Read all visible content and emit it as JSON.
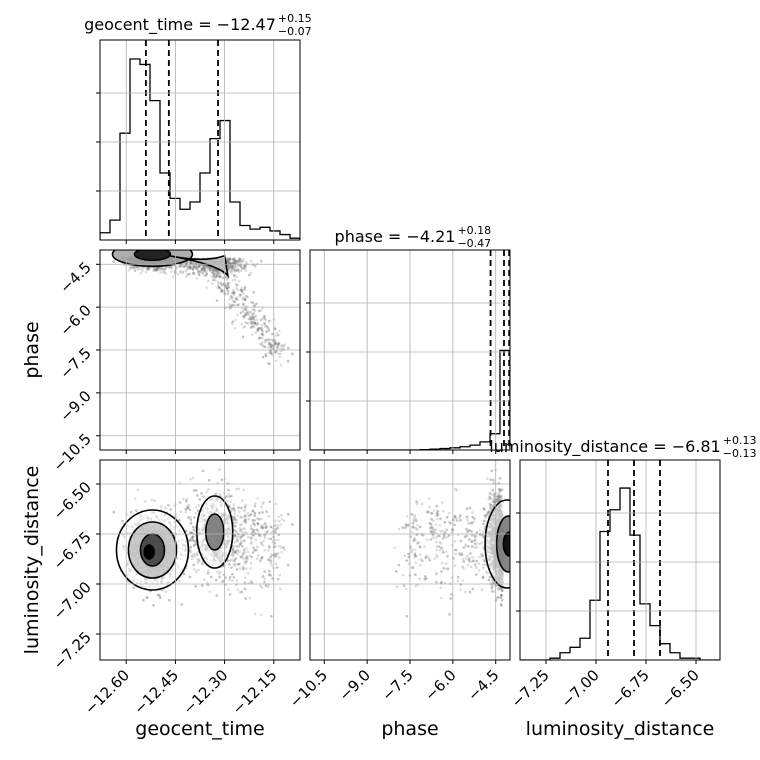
{
  "chart_data": {
    "type": "corner",
    "parameters": [
      {
        "name": "geocent_time",
        "title": "geocent_time = −12.47",
        "plus": "+0.15",
        "minus": "−0.07",
        "range": [
          -12.68,
          -12.07
        ],
        "ticks": [
          -12.6,
          -12.45,
          -12.3,
          -12.15
        ],
        "tick_labels": [
          "−12.60",
          "−12.45",
          "−12.30",
          "−12.15"
        ],
        "quantiles": [
          -12.54,
          -12.47,
          -12.32
        ]
      },
      {
        "name": "phase",
        "title": "phase = −4.21",
        "plus": "+0.18",
        "minus": "−0.47",
        "range": [
          -11.0,
          -4.0
        ],
        "ticks": [
          -10.5,
          -9.0,
          -7.5,
          -6.0,
          -4.5
        ],
        "tick_labels": [
          "−10.5",
          "−9.0",
          "−7.5",
          "−6.0",
          "−4.5"
        ],
        "quantiles": [
          -4.68,
          -4.21,
          -4.03
        ]
      },
      {
        "name": "luminosity_distance",
        "title": "luminosity_distance = −6.81",
        "plus": "+0.13",
        "minus": "−0.13",
        "range": [
          -7.38,
          -6.38
        ],
        "ticks": [
          -7.25,
          -7.0,
          -6.75,
          -6.5
        ],
        "tick_labels": [
          "−7.25",
          "−7.00",
          "−6.75",
          "−6.50"
        ],
        "quantiles": [
          -6.94,
          -6.81,
          -6.68
        ]
      }
    ],
    "histograms": {
      "geocent_time": [
        0.04,
        0.11,
        0.59,
        1.0,
        0.97,
        0.77,
        0.37,
        0.23,
        0.17,
        0.21,
        0.37,
        0.56,
        0.66,
        0.21,
        0.08,
        0.06,
        0.07,
        0.05,
        0.03,
        0.01
      ],
      "phase": [
        0,
        0,
        0,
        0,
        0,
        0,
        0,
        0,
        0,
        0,
        0,
        0.002,
        0.005,
        0.008,
        0.012,
        0.018,
        0.027,
        0.045,
        0.09,
        0.55
      ],
      "luminosity_distance": [
        0,
        0,
        0,
        0.01,
        0.04,
        0.07,
        0.12,
        0.33,
        0.71,
        0.83,
        0.95,
        0.69,
        0.31,
        0.19,
        0.09,
        0.04,
        0.01,
        0.01,
        0,
        0
      ]
    },
    "grid": true
  }
}
